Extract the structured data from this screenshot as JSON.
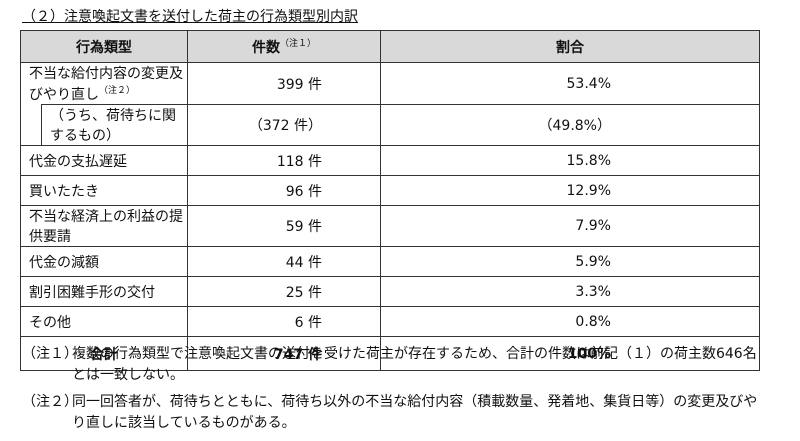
{
  "title": "（２）注意喚起文書を送付した荷主の行為類型別内訳",
  "table": {
    "header": {
      "category": "行為類型",
      "count": "件数",
      "count_note": "（注１）",
      "share": "割合"
    },
    "rows": [
      {
        "category": "不当な給付内容の変更及びやり直し",
        "note": "（注２）",
        "count": "399 件",
        "share": "53.4%"
      },
      {
        "category": "（うち、荷待ちに関するもの）",
        "count": "（372 件）",
        "share": "（49.8%）"
      },
      {
        "category": "代金の支払遅延",
        "count": "118 件",
        "share": "15.8%"
      },
      {
        "category": "買いたたき",
        "count": "96 件",
        "share": "12.9%"
      },
      {
        "category": "不当な経済上の利益の提供要請",
        "count": "59 件",
        "share": "7.9%"
      },
      {
        "category": "代金の減額",
        "count": "44 件",
        "share": "5.9%"
      },
      {
        "category": "割引困難手形の交付",
        "count": "25 件",
        "share": "3.3%"
      },
      {
        "category": "その他",
        "count": "6 件",
        "share": "0.8%"
      }
    ],
    "total": {
      "category": "合計",
      "count": "747 件",
      "share": "100%"
    }
  },
  "notes": [
    {
      "label": "（注１）",
      "text": "複数の行為類型で注意喚起文書の送付を受けた荷主が存在するため、合計の件数は前記（１）の荷主数646名とは一致しない。"
    },
    {
      "label": "（注２）",
      "text": "同一回答者が、荷待ちとともに、荷待ち以外の不当な給付内容（積載数量、発着地、集貨日等）の変更及びやり直しに該当しているものがある。"
    }
  ]
}
